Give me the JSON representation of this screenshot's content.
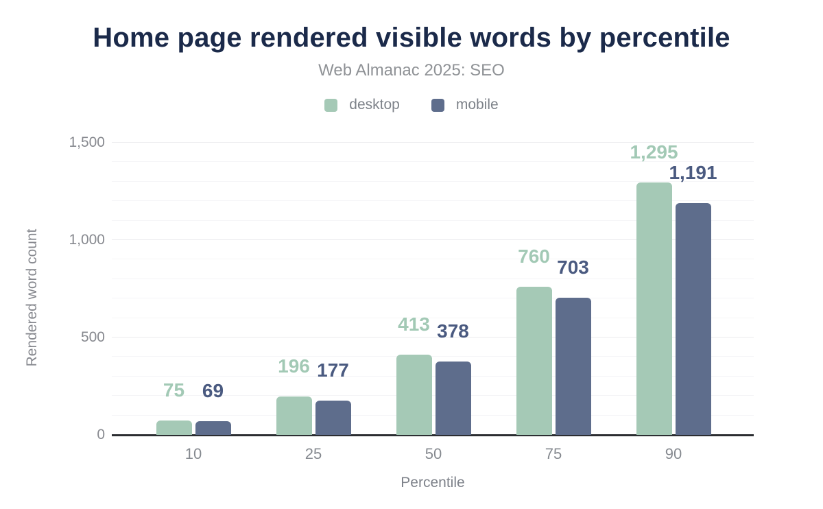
{
  "header": {
    "title": "Home page rendered visible words by percentile",
    "subtitle": "Web Almanac 2025: SEO"
  },
  "chart_data": {
    "type": "bar",
    "title": "Home page rendered visible words by percentile",
    "subtitle": "Web Almanac 2025: SEO",
    "categories": [
      "10",
      "25",
      "50",
      "75",
      "90"
    ],
    "series": [
      {
        "name": "desktop",
        "color": "#a5c9b6",
        "label_color": "#a2c9b5",
        "values": [
          75,
          196,
          413,
          760,
          1295
        ],
        "labels": [
          "75",
          "196",
          "413",
          "760",
          "1,295"
        ]
      },
      {
        "name": "mobile",
        "color": "#5e6d8c",
        "label_color": "#4a5a80",
        "values": [
          69,
          177,
          378,
          703,
          1191
        ],
        "labels": [
          "69",
          "177",
          "378",
          "703",
          "1,191"
        ]
      }
    ],
    "xlabel": "Percentile",
    "ylabel": "Rendered word count",
    "ylim": [
      0,
      1500
    ],
    "yticks": [
      {
        "value": 0,
        "label": "0"
      },
      {
        "value": 500,
        "label": "500"
      },
      {
        "value": 1000,
        "label": "1,000"
      },
      {
        "value": 1500,
        "label": "1,500"
      }
    ],
    "minor_grid_step": 100,
    "major_grid_step": 500,
    "grid": true,
    "legend_position": "top",
    "colors": {
      "title_text": "#1b2a4a",
      "subtitle_text": "#8f9296",
      "legend_text": "#7d8289",
      "axis_text": "#87898f",
      "baseline": "#2b2d31",
      "grid_minor": "#f5f5f7",
      "grid_major": "#ebebee",
      "background": "#ffffff"
    }
  }
}
